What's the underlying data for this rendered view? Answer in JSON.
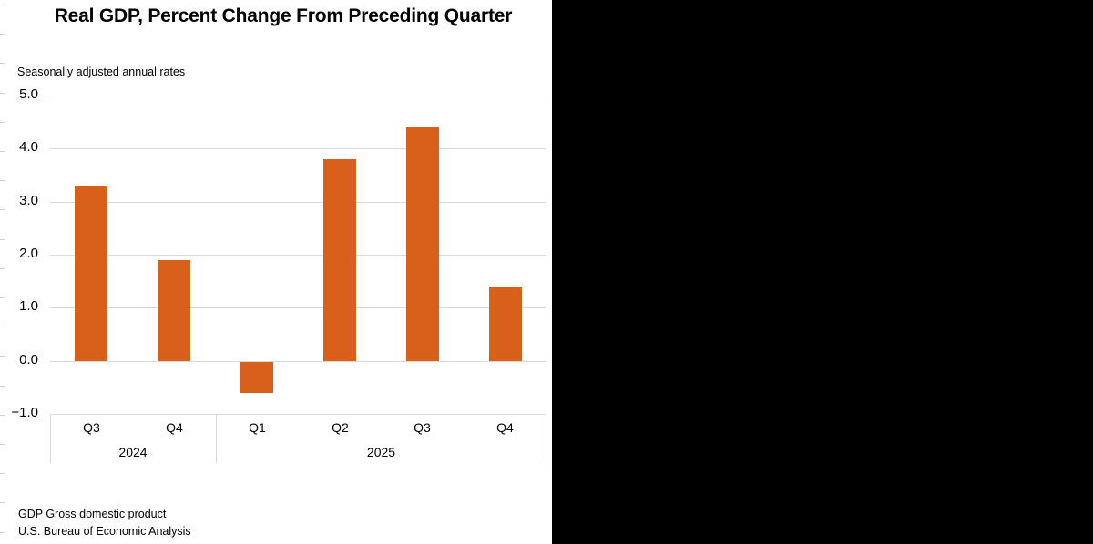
{
  "chart": {
    "title": "Real GDP, Percent Change From Preceding Quarter",
    "subtitle": "Seasonally adjusted annual rates",
    "y_ticks": [
      "5.0",
      "4.0",
      "3.0",
      "2.0",
      "1.0",
      "0.0",
      "−1.0"
    ],
    "categories": [
      "Q3",
      "Q4",
      "Q1",
      "Q2",
      "Q3",
      "Q4"
    ],
    "years": [
      "2024",
      "2025"
    ],
    "bar_color": "#D9601A",
    "gridline_color": "#D9D9D9"
  },
  "footnotes": {
    "line1": "GDP Gross domestic product",
    "line2": "U.S. Bureau of Economic Analysis"
  },
  "chart_data": {
    "type": "bar",
    "title": "Real GDP, Percent Change From Preceding Quarter",
    "subtitle": "Seasonally adjusted annual rates",
    "xlabel": "",
    "ylabel": "",
    "categories": [
      "2024 Q3",
      "2024 Q4",
      "2025 Q1",
      "2025 Q2",
      "2025 Q3",
      "2025 Q4"
    ],
    "category_levels": {
      "quarters": [
        "Q3",
        "Q4",
        "Q1",
        "Q2",
        "Q3",
        "Q4"
      ],
      "years": [
        {
          "label": "2024",
          "span": 2
        },
        {
          "label": "2025",
          "span": 4
        }
      ]
    },
    "values": [
      3.3,
      1.9,
      -0.6,
      3.8,
      4.4,
      1.4
    ],
    "ylim": [
      -1.0,
      5.0
    ],
    "yticks": [
      -1.0,
      0.0,
      1.0,
      2.0,
      3.0,
      4.0,
      5.0
    ],
    "grid": true,
    "legend": null,
    "color": "#D9601A",
    "notes": [
      "GDP Gross domestic product",
      "U.S. Bureau of Economic Analysis"
    ]
  }
}
